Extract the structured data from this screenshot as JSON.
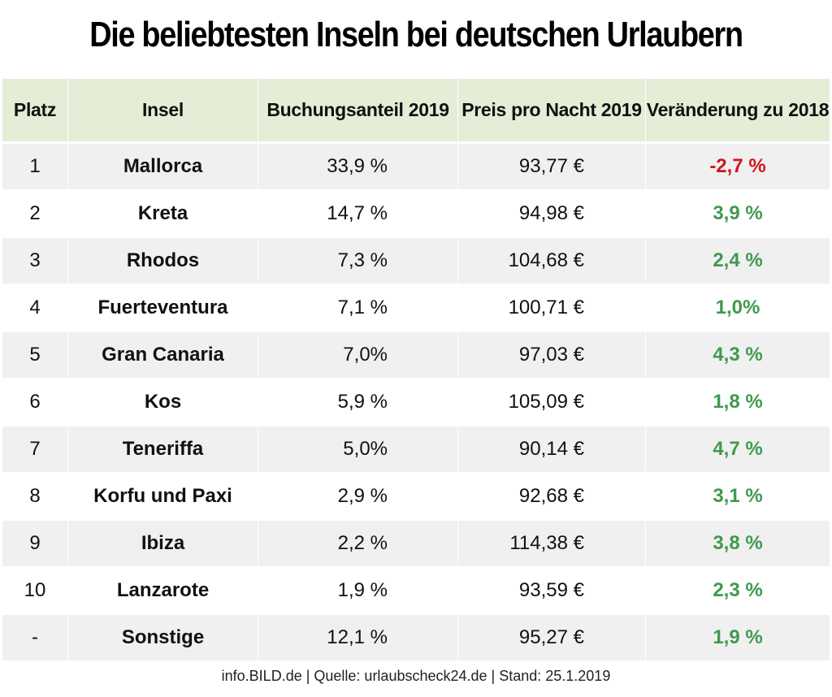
{
  "title": "Die beliebtesten Inseln bei deutschen Urlaubern",
  "footer": "info.BILD.de | Quelle: urlaubscheck24.de | Stand: 25.1.2019",
  "colors": {
    "header_bg": "#e6edd6",
    "row_shaded": "#f0f0f0",
    "row_plain": "#ffffff",
    "negative": "#d0161c",
    "positive": "#3f9a4e"
  },
  "chart_data": {
    "type": "table",
    "title": "Die beliebtesten Inseln bei deutschen Urlaubern",
    "columns": [
      "Platz",
      "Insel",
      "Buchungsanteil 2019",
      "Preis pro Nacht 2019",
      "Veränderung zu 2018"
    ],
    "rows": [
      {
        "platz": "1",
        "insel": "Mallorca",
        "anteil": "33,9 %",
        "preis": "93,77 €",
        "veraenderung": "-2,7 %",
        "trend": "neg"
      },
      {
        "platz": "2",
        "insel": "Kreta",
        "anteil": "14,7 %",
        "preis": "94,98 €",
        "veraenderung": "3,9 %",
        "trend": "pos"
      },
      {
        "platz": "3",
        "insel": "Rhodos",
        "anteil": "7,3 %",
        "preis": "104,68 €",
        "veraenderung": "2,4 %",
        "trend": "pos"
      },
      {
        "platz": "4",
        "insel": "Fuerteventura",
        "anteil": "7,1 %",
        "preis": "100,71 €",
        "veraenderung": "1,0%",
        "trend": "pos"
      },
      {
        "platz": "5",
        "insel": "Gran Canaria",
        "anteil": "7,0%",
        "preis": "97,03 €",
        "veraenderung": "4,3 %",
        "trend": "pos"
      },
      {
        "platz": "6",
        "insel": "Kos",
        "anteil": "5,9 %",
        "preis": "105,09 €",
        "veraenderung": "1,8 %",
        "trend": "pos"
      },
      {
        "platz": "7",
        "insel": "Teneriffa",
        "anteil": "5,0%",
        "preis": "90,14 €",
        "veraenderung": "4,7 %",
        "trend": "pos"
      },
      {
        "platz": "8",
        "insel": "Korfu und Paxi",
        "anteil": "2,9 %",
        "preis": "92,68 €",
        "veraenderung": "3,1 %",
        "trend": "pos"
      },
      {
        "platz": "9",
        "insel": "Ibiza",
        "anteil": "2,2 %",
        "preis": "114,38 €",
        "veraenderung": "3,8 %",
        "trend": "pos"
      },
      {
        "platz": "10",
        "insel": "Lanzarote",
        "anteil": "1,9 %",
        "preis": "93,59 €",
        "veraenderung": "2,3 %",
        "trend": "pos"
      },
      {
        "platz": "-",
        "insel": "Sonstige",
        "anteil": "12,1 %",
        "preis": "95,27 €",
        "veraenderung": "1,9 %",
        "trend": "pos"
      }
    ]
  }
}
